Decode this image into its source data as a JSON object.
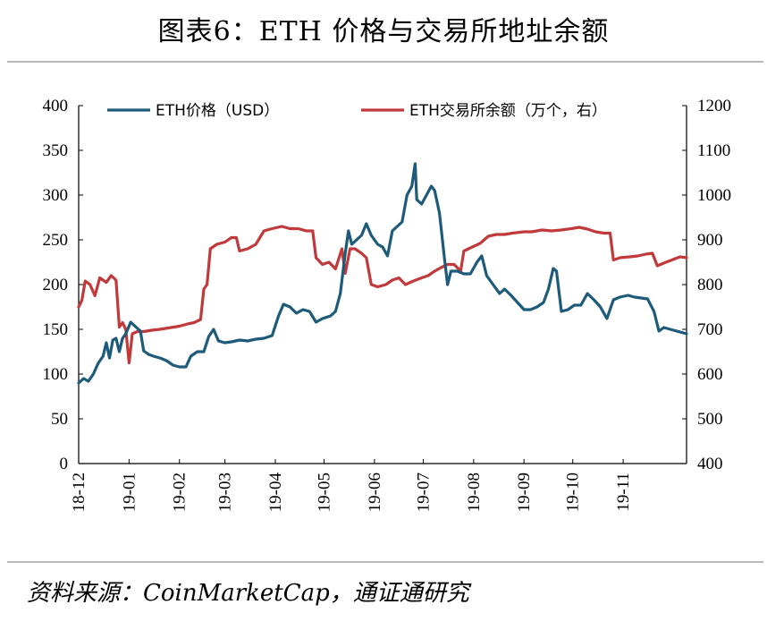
{
  "header": {
    "title": "图表6：ETH 价格与交易所地址余额"
  },
  "footer": {
    "source": "资料来源：CoinMarketCap，通证通研究"
  },
  "chart_data": {
    "type": "line",
    "title": "图表6：ETH 价格与交易所地址余额",
    "x_ticks": [
      "18-12",
      "19-01",
      "19-02",
      "19-03",
      "19-04",
      "19-05",
      "19-06",
      "19-07",
      "19-08",
      "19-09",
      "19-10",
      "19-11"
    ],
    "xlim": [
      "2018-12-01",
      "2019-12-10"
    ],
    "ylim_left": [
      0,
      400
    ],
    "ylim_right": [
      400,
      1200
    ],
    "y_ticks_left": [
      "0",
      "50",
      "100",
      "150",
      "200",
      "250",
      "300",
      "350",
      "400"
    ],
    "y_ticks_right": [
      "400",
      "500",
      "600",
      "700",
      "800",
      "900",
      "1000",
      "1100",
      "1200"
    ],
    "grid": false,
    "legend": "top",
    "colors": {
      "price": "#1e5a7a",
      "balance": "#c0393b"
    },
    "series": [
      {
        "name": "ETH价格（USD）",
        "axis": "left",
        "points": [
          [
            "2018-12-01",
            90
          ],
          [
            "2018-12-04",
            95
          ],
          [
            "2018-12-07",
            92
          ],
          [
            "2018-12-10",
            100
          ],
          [
            "2018-12-13",
            112
          ],
          [
            "2018-12-16",
            120
          ],
          [
            "2018-12-18",
            135
          ],
          [
            "2018-12-20",
            118
          ],
          [
            "2018-12-22",
            138
          ],
          [
            "2018-12-24",
            140
          ],
          [
            "2018-12-26",
            125
          ],
          [
            "2018-12-28",
            140
          ],
          [
            "2018-12-30",
            145
          ],
          [
            "2019-01-02",
            158
          ],
          [
            "2019-01-05",
            153
          ],
          [
            "2019-01-08",
            148
          ],
          [
            "2019-01-10",
            126
          ],
          [
            "2019-01-13",
            122
          ],
          [
            "2019-01-16",
            120
          ],
          [
            "2019-01-20",
            118
          ],
          [
            "2019-01-24",
            115
          ],
          [
            "2019-01-28",
            110
          ],
          [
            "2019-02-01",
            108
          ],
          [
            "2019-02-05",
            108
          ],
          [
            "2019-02-08",
            120
          ],
          [
            "2019-02-12",
            125
          ],
          [
            "2019-02-16",
            125
          ],
          [
            "2019-02-19",
            142
          ],
          [
            "2019-02-22",
            150
          ],
          [
            "2019-02-25",
            137
          ],
          [
            "2019-03-01",
            135
          ],
          [
            "2019-03-05",
            136
          ],
          [
            "2019-03-10",
            138
          ],
          [
            "2019-03-15",
            137
          ],
          [
            "2019-03-20",
            139
          ],
          [
            "2019-03-25",
            140
          ],
          [
            "2019-03-30",
            143
          ],
          [
            "2019-04-03",
            165
          ],
          [
            "2019-04-06",
            178
          ],
          [
            "2019-04-10",
            175
          ],
          [
            "2019-04-14",
            168
          ],
          [
            "2019-04-18",
            172
          ],
          [
            "2019-04-22",
            170
          ],
          [
            "2019-04-26",
            158
          ],
          [
            "2019-04-30",
            162
          ],
          [
            "2019-05-05",
            165
          ],
          [
            "2019-05-08",
            170
          ],
          [
            "2019-05-11",
            190
          ],
          [
            "2019-05-14",
            235
          ],
          [
            "2019-05-16",
            260
          ],
          [
            "2019-05-18",
            245
          ],
          [
            "2019-05-21",
            250
          ],
          [
            "2019-05-24",
            255
          ],
          [
            "2019-05-27",
            268
          ],
          [
            "2019-05-30",
            255
          ],
          [
            "2019-06-03",
            245
          ],
          [
            "2019-06-06",
            242
          ],
          [
            "2019-06-09",
            232
          ],
          [
            "2019-06-12",
            260
          ],
          [
            "2019-06-15",
            265
          ],
          [
            "2019-06-18",
            270
          ],
          [
            "2019-06-21",
            300
          ],
          [
            "2019-06-24",
            310
          ],
          [
            "2019-06-26",
            335
          ],
          [
            "2019-06-27",
            295
          ],
          [
            "2019-06-30",
            290
          ],
          [
            "2019-07-03",
            300
          ],
          [
            "2019-07-06",
            310
          ],
          [
            "2019-07-08",
            305
          ],
          [
            "2019-07-11",
            280
          ],
          [
            "2019-07-14",
            230
          ],
          [
            "2019-07-16",
            200
          ],
          [
            "2019-07-18",
            215
          ],
          [
            "2019-07-22",
            215
          ],
          [
            "2019-07-26",
            212
          ],
          [
            "2019-07-30",
            212
          ],
          [
            "2019-08-03",
            225
          ],
          [
            "2019-08-06",
            232
          ],
          [
            "2019-08-09",
            210
          ],
          [
            "2019-08-13",
            200
          ],
          [
            "2019-08-17",
            190
          ],
          [
            "2019-08-20",
            195
          ],
          [
            "2019-08-24",
            188
          ],
          [
            "2019-08-28",
            180
          ],
          [
            "2019-09-01",
            172
          ],
          [
            "2019-09-05",
            172
          ],
          [
            "2019-09-09",
            175
          ],
          [
            "2019-09-13",
            180
          ],
          [
            "2019-09-16",
            195
          ],
          [
            "2019-09-19",
            218
          ],
          [
            "2019-09-21",
            215
          ],
          [
            "2019-09-24",
            170
          ],
          [
            "2019-09-28",
            172
          ],
          [
            "2019-10-02",
            177
          ],
          [
            "2019-10-06",
            177
          ],
          [
            "2019-10-10",
            190
          ],
          [
            "2019-10-14",
            183
          ],
          [
            "2019-10-18",
            175
          ],
          [
            "2019-10-22",
            162
          ],
          [
            "2019-10-26",
            183
          ],
          [
            "2019-10-30",
            186
          ],
          [
            "2019-11-04",
            188
          ],
          [
            "2019-11-08",
            186
          ],
          [
            "2019-11-12",
            185
          ],
          [
            "2019-11-16",
            184
          ],
          [
            "2019-11-20",
            170
          ],
          [
            "2019-11-23",
            148
          ],
          [
            "2019-11-26",
            152
          ],
          [
            "2019-11-30",
            150
          ],
          [
            "2019-12-04",
            148
          ],
          [
            "2019-12-08",
            146
          ],
          [
            "2019-12-10",
            145
          ]
        ]
      },
      {
        "name": "ETH交易所余额（万个，右）",
        "axis": "right",
        "points": [
          [
            "2018-12-01",
            750
          ],
          [
            "2018-12-03",
            765
          ],
          [
            "2018-12-05",
            808
          ],
          [
            "2018-12-08",
            800
          ],
          [
            "2018-12-11",
            775
          ],
          [
            "2018-12-14",
            815
          ],
          [
            "2018-12-18",
            805
          ],
          [
            "2018-12-21",
            820
          ],
          [
            "2018-12-24",
            810
          ],
          [
            "2018-12-26",
            705
          ],
          [
            "2018-12-28",
            715
          ],
          [
            "2018-12-30",
            700
          ],
          [
            "2019-01-01",
            625
          ],
          [
            "2019-01-03",
            690
          ],
          [
            "2019-01-06",
            695
          ],
          [
            "2019-01-10",
            695
          ],
          [
            "2019-01-15",
            698
          ],
          [
            "2019-01-20",
            700
          ],
          [
            "2019-01-25",
            703
          ],
          [
            "2019-02-01",
            707
          ],
          [
            "2019-02-06",
            712
          ],
          [
            "2019-02-10",
            715
          ],
          [
            "2019-02-14",
            722
          ],
          [
            "2019-02-16",
            790
          ],
          [
            "2019-02-18",
            800
          ],
          [
            "2019-02-20",
            880
          ],
          [
            "2019-02-24",
            890
          ],
          [
            "2019-03-01",
            895
          ],
          [
            "2019-03-05",
            905
          ],
          [
            "2019-03-08",
            905
          ],
          [
            "2019-03-10",
            875
          ],
          [
            "2019-03-15",
            880
          ],
          [
            "2019-03-20",
            890
          ],
          [
            "2019-03-25",
            920
          ],
          [
            "2019-03-30",
            925
          ],
          [
            "2019-04-05",
            930
          ],
          [
            "2019-04-10",
            925
          ],
          [
            "2019-04-15",
            925
          ],
          [
            "2019-04-20",
            920
          ],
          [
            "2019-04-24",
            920
          ],
          [
            "2019-04-26",
            860
          ],
          [
            "2019-04-30",
            845
          ],
          [
            "2019-05-04",
            850
          ],
          [
            "2019-05-08",
            835
          ],
          [
            "2019-05-12",
            880
          ],
          [
            "2019-05-14",
            825
          ],
          [
            "2019-05-17",
            880
          ],
          [
            "2019-05-20",
            880
          ],
          [
            "2019-05-24",
            870
          ],
          [
            "2019-05-27",
            860
          ],
          [
            "2019-05-30",
            800
          ],
          [
            "2019-06-03",
            795
          ],
          [
            "2019-06-08",
            800
          ],
          [
            "2019-06-12",
            810
          ],
          [
            "2019-06-16",
            815
          ],
          [
            "2019-06-20",
            800
          ],
          [
            "2019-06-25",
            808
          ],
          [
            "2019-06-30",
            815
          ],
          [
            "2019-07-04",
            820
          ],
          [
            "2019-07-08",
            830
          ],
          [
            "2019-07-12",
            838
          ],
          [
            "2019-07-16",
            845
          ],
          [
            "2019-07-20",
            845
          ],
          [
            "2019-07-24",
            830
          ],
          [
            "2019-07-26",
            875
          ],
          [
            "2019-07-30",
            882
          ],
          [
            "2019-08-05",
            892
          ],
          [
            "2019-08-10",
            908
          ],
          [
            "2019-08-15",
            912
          ],
          [
            "2019-08-20",
            912
          ],
          [
            "2019-08-25",
            915
          ],
          [
            "2019-09-01",
            918
          ],
          [
            "2019-09-06",
            918
          ],
          [
            "2019-09-12",
            922
          ],
          [
            "2019-09-18",
            920
          ],
          [
            "2019-09-24",
            922
          ],
          [
            "2019-09-30",
            925
          ],
          [
            "2019-10-05",
            928
          ],
          [
            "2019-10-10",
            924
          ],
          [
            "2019-10-15",
            918
          ],
          [
            "2019-10-20",
            915
          ],
          [
            "2019-10-24",
            915
          ],
          [
            "2019-10-26",
            855
          ],
          [
            "2019-10-30",
            860
          ],
          [
            "2019-11-05",
            862
          ],
          [
            "2019-11-10",
            864
          ],
          [
            "2019-11-15",
            868
          ],
          [
            "2019-11-19",
            870
          ],
          [
            "2019-11-22",
            842
          ],
          [
            "2019-11-26",
            848
          ],
          [
            "2019-12-01",
            855
          ],
          [
            "2019-12-06",
            862
          ],
          [
            "2019-12-10",
            860
          ]
        ]
      }
    ]
  }
}
